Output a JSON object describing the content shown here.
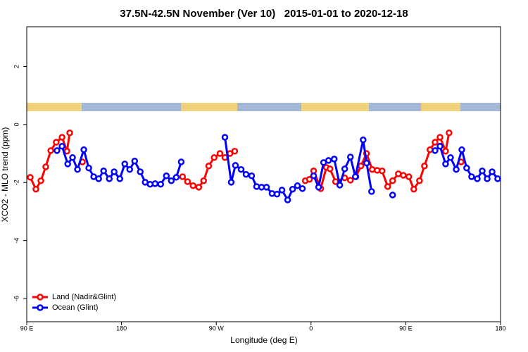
{
  "chart_data": {
    "type": "line",
    "title": "37.5N-42.5N November (Ver 10)   2015-01-01 to 2020-12-18",
    "x_label": "Longitude (deg E)",
    "y_label": "XCO2 - MLO trend (ppm)",
    "xlim": [
      90,
      540
    ],
    "ylim": [
      -6.8,
      3.37
    ],
    "xticks": [
      {
        "value": 90,
        "label": "90 E"
      },
      {
        "value": 180,
        "label": "180"
      },
      {
        "value": 270,
        "label": "90 W"
      },
      {
        "value": 360,
        "label": "0"
      },
      {
        "value": 450,
        "label": "90 E"
      },
      {
        "value": 540,
        "label": "180"
      }
    ],
    "yticks": [
      -6,
      -4,
      -2,
      0,
      2
    ],
    "legend": "bottom-left",
    "series": [
      {
        "name": "Land (Nadir&Glint)",
        "color": "#ff0000",
        "x": [
          93.3,
          98.7,
          103.4,
          108,
          112.8,
          118,
          123.5,
          128.2,
          130.8,
          null,
          142.9,
          null,
          238,
          242.7,
          248,
          253.4,
          258,
          262.8,
          268,
          273.5,
          278.2,
          283,
          287.5,
          null,
          354.5,
          358.5,
          362.5,
          369.2,
          374.6,
          378,
          383.3,
          392,
          397.4,
          402.7,
          407.4,
          412.7,
          418.1,
          422.8,
          427.5,
          432.8,
          437.5,
          442.9,
          447.6,
          452.9,
          457.6,
          463,
          467.7,
          473,
          477.8,
          482.5,
          487.8,
          491.1,
          null,
          502.5
        ],
        "values": [
          -1.82,
          -2.23,
          -1.94,
          -1.46,
          -0.9,
          -0.61,
          -0.44,
          -0.92,
          -0.29,
          null,
          -1.29,
          null,
          -1.8,
          -1.97,
          -2.11,
          -2.16,
          -1.94,
          -1.43,
          -1.14,
          -1.0,
          -1.14,
          -1.0,
          -0.92,
          null,
          -1.94,
          -1.89,
          -1.6,
          -2.21,
          -1.48,
          -1.53,
          -1.97,
          -1.84,
          -1.92,
          -1.8,
          -1.43,
          -1.0,
          -1.55,
          -1.58,
          -1.6,
          -2.14,
          -1.94,
          -1.7,
          -1.75,
          -1.8,
          -2.23,
          -1.94,
          -1.43,
          -0.87,
          -0.61,
          -0.44,
          -0.92,
          -0.29,
          null,
          -1.29
        ]
      },
      {
        "name": "Ocean (Glint)",
        "color": "#0000ff",
        "x": [
          118.7,
          123.5,
          128.9,
          133.5,
          138.2,
          144.2,
          148.9,
          153.6,
          158.3,
          163,
          168.4,
          173,
          178.4,
          183.1,
          187.8,
          192.5,
          197.8,
          202.5,
          207.2,
          211.9,
          217.2,
          222.6,
          227.3,
          232,
          236.7,
          null,
          278.2,
          284.2,
          288.2,
          293.6,
          298.3,
          303.6,
          308.3,
          313,
          317.7,
          323,
          327.7,
          332.4,
          337.8,
          342.5,
          347.1,
          351.8,
          null,
          362.5,
          367.2,
          371.9,
          376.6,
          382,
          387.3,
          392,
          397.4,
          402.1,
          409.5,
          412.8,
          417.5,
          null,
          437.5,
          null,
          477.8,
          482.5,
          487.8,
          492.5,
          497.9,
          503.2,
          507.8,
          512.5,
          517.9,
          522.6,
          527.3,
          532,
          537.3
        ],
        "values": [
          -0.9,
          -0.75,
          -1.36,
          -1.14,
          -1.55,
          -0.87,
          -1.5,
          -1.8,
          -1.87,
          -1.6,
          -1.87,
          -1.63,
          -1.87,
          -1.36,
          -1.55,
          -1.26,
          -1.63,
          -1.99,
          -2.06,
          -2.04,
          -2.06,
          -1.77,
          -1.94,
          -1.82,
          -1.29,
          null,
          -0.44,
          -1.99,
          -1.41,
          -1.55,
          -1.72,
          -1.77,
          -2.14,
          -2.16,
          -2.16,
          -2.38,
          -2.4,
          -2.26,
          -2.6,
          -2.23,
          -2.11,
          -2.21,
          null,
          -1.77,
          -2.16,
          -1.31,
          -1.24,
          -1.19,
          -2.09,
          -1.53,
          -1.12,
          -1.8,
          -0.53,
          -1.33,
          -2.31,
          null,
          -2.43,
          null,
          -0.9,
          -0.75,
          -1.36,
          -1.14,
          -1.55,
          -0.87,
          -1.5,
          -1.8,
          -1.87,
          -1.6,
          -1.87,
          -1.63,
          -1.87
        ]
      }
    ]
  }
}
